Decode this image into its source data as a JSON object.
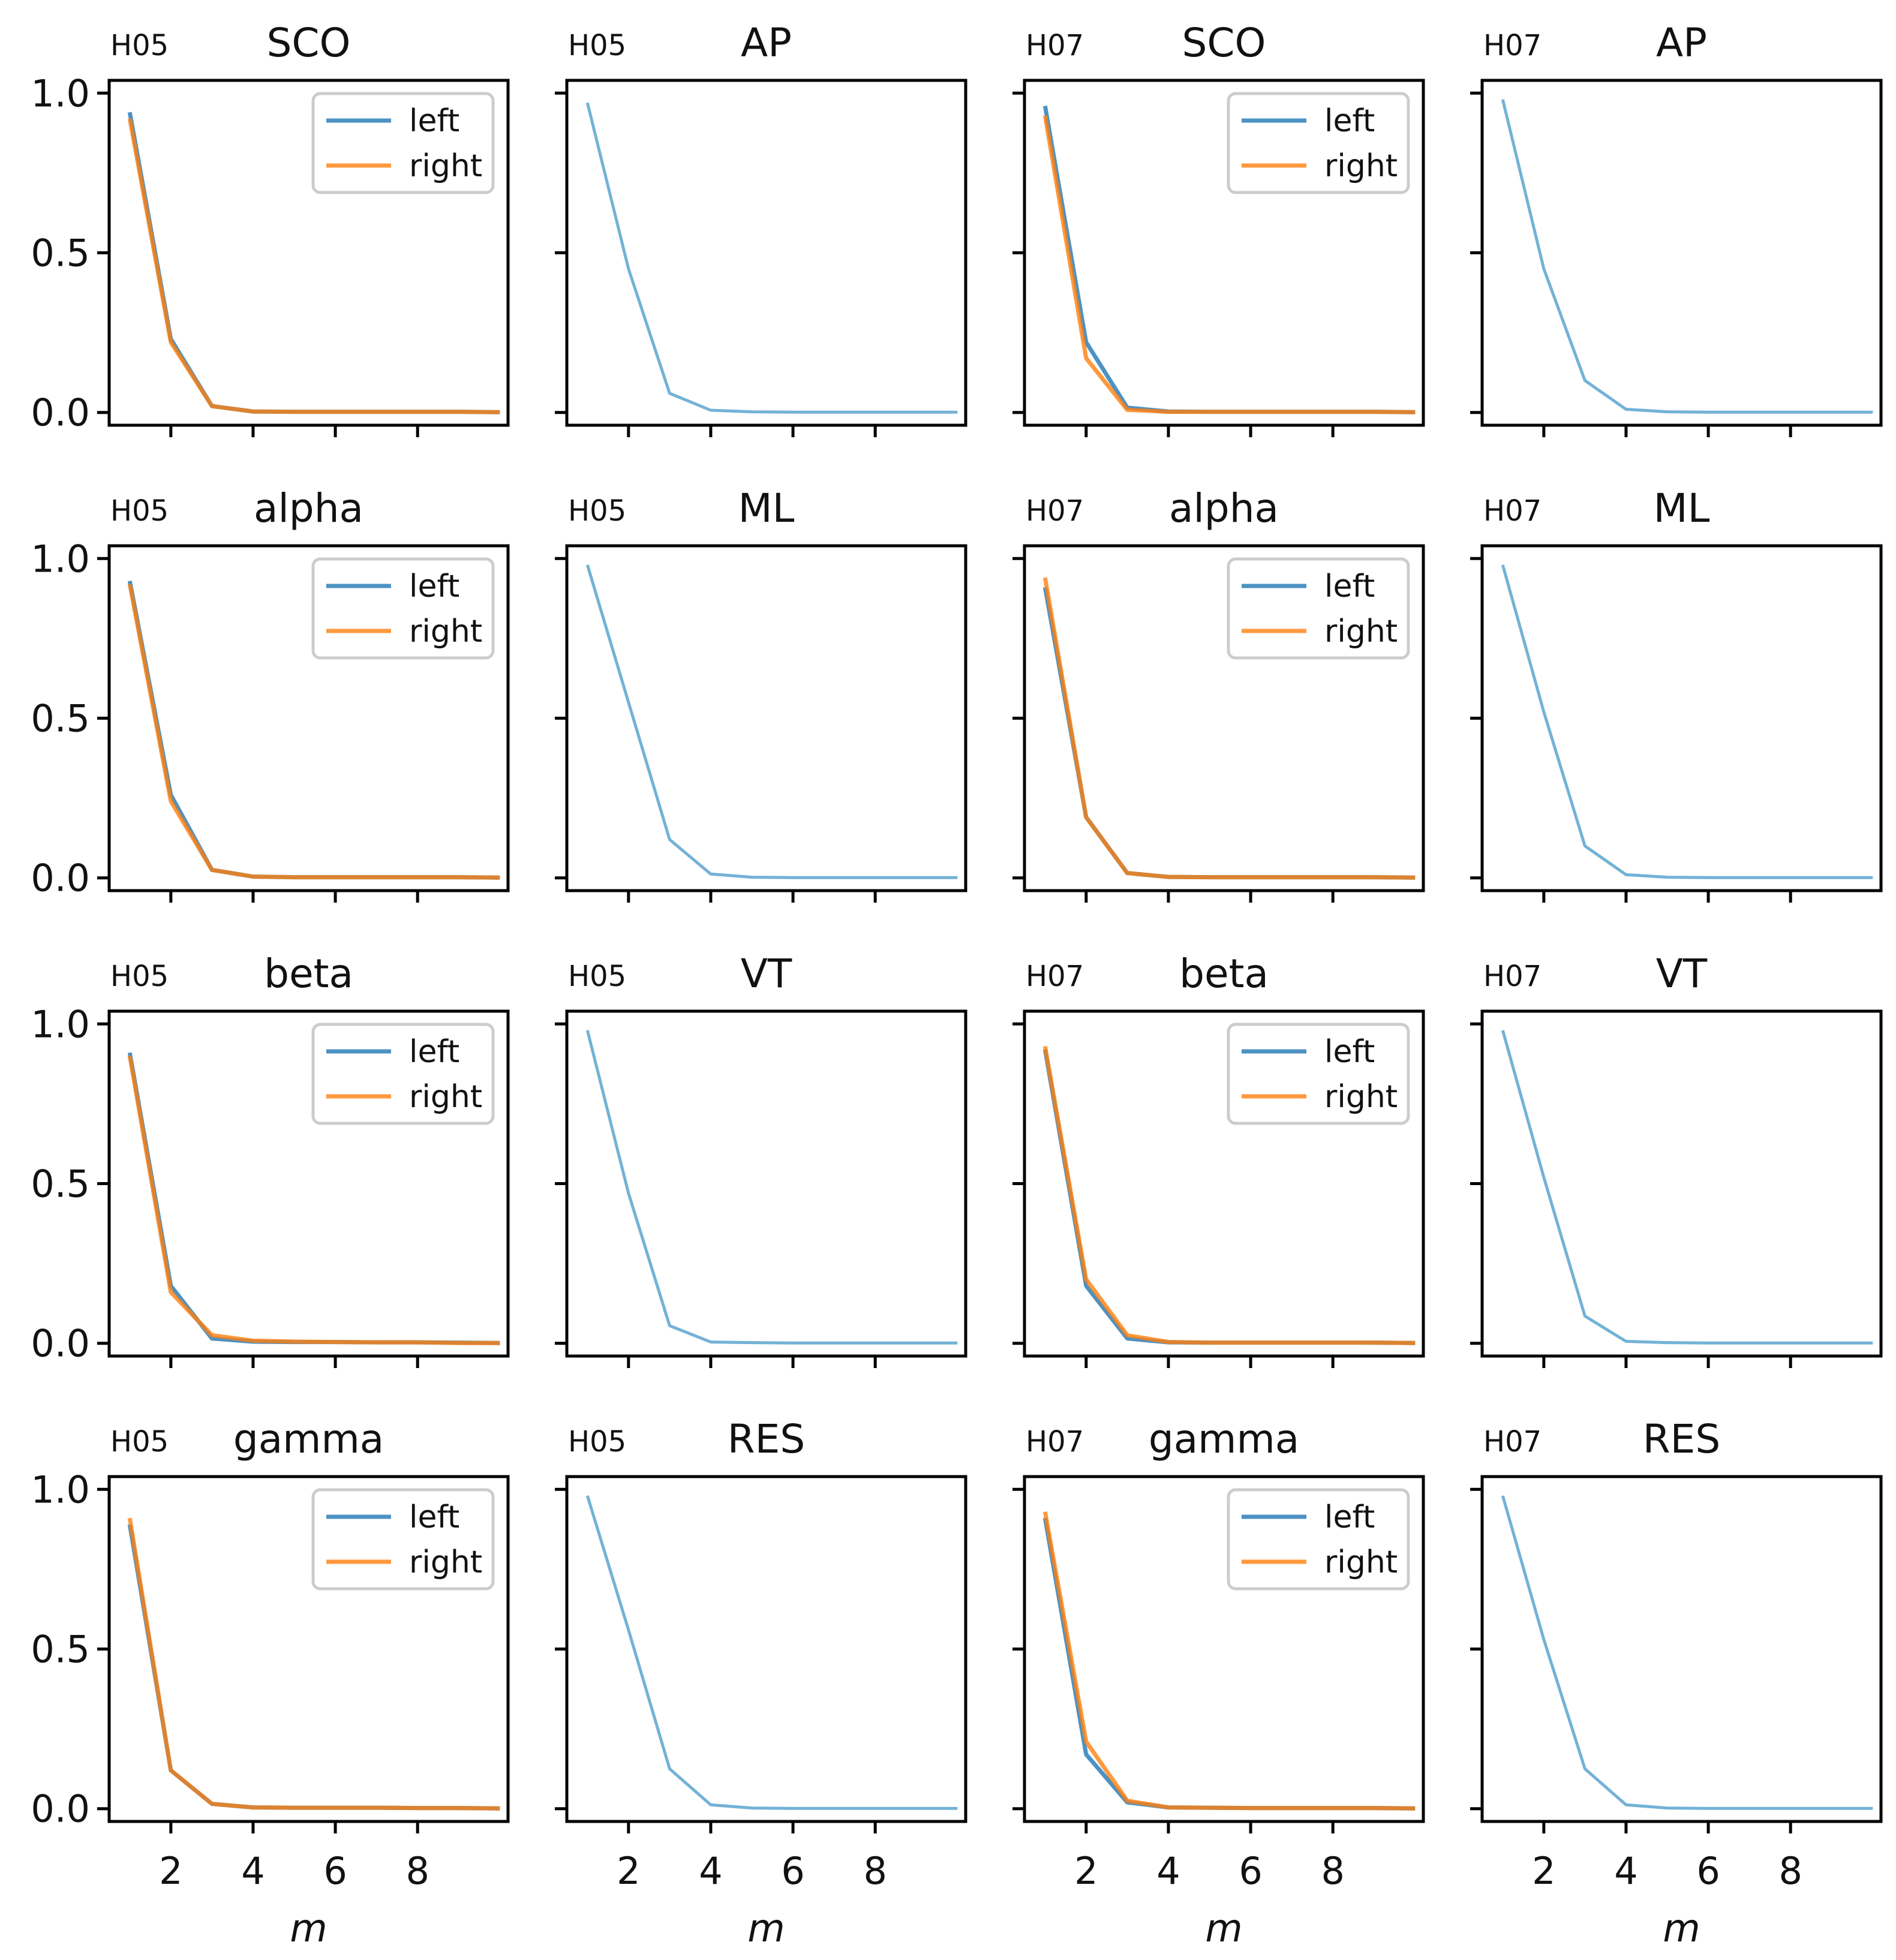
{
  "figure": {
    "colors": {
      "left": "#1f77b4",
      "right": "#ff7f0e",
      "single": "#5aa5cf"
    },
    "xlabel": "m",
    "x_ticks": [
      2,
      4,
      6,
      8
    ],
    "y_ticks": [
      "1.0",
      "0.5",
      "0.0"
    ]
  },
  "chart_data": [
    {
      "id": "r0c0",
      "type": "line",
      "prefix": "H05",
      "title": "SCO",
      "xlim": [
        0.5,
        10.2
      ],
      "ylim": [
        -0.04,
        1.04
      ],
      "legend": [
        "left",
        "right"
      ],
      "series": [
        {
          "name": "left",
          "x": [
            1,
            2,
            3,
            4,
            5,
            6,
            7,
            8,
            9,
            10
          ],
          "values": [
            0.94,
            0.23,
            0.02,
            0.003,
            0.002,
            0.002,
            0.002,
            0.002,
            0.002,
            0.001
          ]
        },
        {
          "name": "right",
          "x": [
            1,
            2,
            3,
            4,
            5,
            6,
            7,
            8,
            9,
            10
          ],
          "values": [
            0.92,
            0.22,
            0.02,
            0.003,
            0.002,
            0.002,
            0.002,
            0.002,
            0.002,
            0.001
          ]
        }
      ]
    },
    {
      "id": "r0c1",
      "type": "line",
      "prefix": "H05",
      "title": "AP",
      "xlim": [
        0.5,
        10.2
      ],
      "ylim": [
        -0.04,
        1.04
      ],
      "legend": [],
      "series": [
        {
          "name": "",
          "x": [
            1,
            2,
            3,
            4,
            5,
            6,
            7,
            8,
            9,
            10
          ],
          "values": [
            0.97,
            0.45,
            0.06,
            0.007,
            0.002,
            0.001,
            0.001,
            0.001,
            0.001,
            0.001
          ]
        }
      ]
    },
    {
      "id": "r0c2",
      "type": "line",
      "prefix": "H07",
      "title": "SCO",
      "xlim": [
        0.5,
        10.2
      ],
      "ylim": [
        -0.04,
        1.04
      ],
      "legend": [
        "left",
        "right"
      ],
      "series": [
        {
          "name": "left",
          "x": [
            1,
            2,
            3,
            4,
            5,
            6,
            7,
            8,
            9,
            10
          ],
          "values": [
            0.96,
            0.22,
            0.015,
            0.003,
            0.002,
            0.002,
            0.002,
            0.002,
            0.002,
            0.001
          ]
        },
        {
          "name": "right",
          "x": [
            1,
            2,
            3,
            4,
            5,
            6,
            7,
            8,
            9,
            10
          ],
          "values": [
            0.93,
            0.17,
            0.008,
            0.002,
            0.002,
            0.002,
            0.002,
            0.002,
            0.002,
            0.001
          ]
        }
      ]
    },
    {
      "id": "r0c3",
      "type": "line",
      "prefix": "H07",
      "title": "AP",
      "xlim": [
        0.5,
        10.2
      ],
      "ylim": [
        -0.04,
        1.04
      ],
      "legend": [],
      "series": [
        {
          "name": "",
          "x": [
            1,
            2,
            3,
            4,
            5,
            6,
            7,
            8,
            9,
            10
          ],
          "values": [
            0.98,
            0.45,
            0.1,
            0.01,
            0.002,
            0.001,
            0.001,
            0.001,
            0.001,
            0.001
          ]
        }
      ]
    },
    {
      "id": "r1c0",
      "type": "line",
      "prefix": "H05",
      "title": "alpha",
      "xlim": [
        0.5,
        10.2
      ],
      "ylim": [
        -0.04,
        1.04
      ],
      "legend": [
        "left",
        "right"
      ],
      "series": [
        {
          "name": "left",
          "x": [
            1,
            2,
            3,
            4,
            5,
            6,
            7,
            8,
            9,
            10
          ],
          "values": [
            0.93,
            0.26,
            0.025,
            0.004,
            0.002,
            0.002,
            0.002,
            0.002,
            0.002,
            0.001
          ]
        },
        {
          "name": "right",
          "x": [
            1,
            2,
            3,
            4,
            5,
            6,
            7,
            8,
            9,
            10
          ],
          "values": [
            0.92,
            0.24,
            0.025,
            0.004,
            0.002,
            0.002,
            0.002,
            0.002,
            0.002,
            0.001
          ]
        }
      ]
    },
    {
      "id": "r1c1",
      "type": "line",
      "prefix": "H05",
      "title": "ML",
      "xlim": [
        0.5,
        10.2
      ],
      "ylim": [
        -0.04,
        1.04
      ],
      "legend": [],
      "series": [
        {
          "name": "",
          "x": [
            1,
            2,
            3,
            4,
            5,
            6,
            7,
            8,
            9,
            10
          ],
          "values": [
            0.98,
            0.55,
            0.12,
            0.012,
            0.002,
            0.001,
            0.001,
            0.001,
            0.001,
            0.001
          ]
        }
      ]
    },
    {
      "id": "r1c2",
      "type": "line",
      "prefix": "H07",
      "title": "alpha",
      "xlim": [
        0.5,
        10.2
      ],
      "ylim": [
        -0.04,
        1.04
      ],
      "legend": [
        "left",
        "right"
      ],
      "series": [
        {
          "name": "left",
          "x": [
            1,
            2,
            3,
            4,
            5,
            6,
            7,
            8,
            9,
            10
          ],
          "values": [
            0.91,
            0.19,
            0.015,
            0.003,
            0.002,
            0.002,
            0.002,
            0.002,
            0.002,
            0.001
          ]
        },
        {
          "name": "right",
          "x": [
            1,
            2,
            3,
            4,
            5,
            6,
            7,
            8,
            9,
            10
          ],
          "values": [
            0.94,
            0.19,
            0.015,
            0.003,
            0.002,
            0.002,
            0.002,
            0.002,
            0.002,
            0.001
          ]
        }
      ]
    },
    {
      "id": "r1c3",
      "type": "line",
      "prefix": "H07",
      "title": "ML",
      "xlim": [
        0.5,
        10.2
      ],
      "ylim": [
        -0.04,
        1.04
      ],
      "legend": [],
      "series": [
        {
          "name": "",
          "x": [
            1,
            2,
            3,
            4,
            5,
            6,
            7,
            8,
            9,
            10
          ],
          "values": [
            0.98,
            0.52,
            0.1,
            0.01,
            0.002,
            0.001,
            0.001,
            0.001,
            0.001,
            0.001
          ]
        }
      ]
    },
    {
      "id": "r2c0",
      "type": "line",
      "prefix": "H05",
      "title": "beta",
      "xlim": [
        0.5,
        10.2
      ],
      "ylim": [
        -0.04,
        1.04
      ],
      "legend": [
        "left",
        "right"
      ],
      "series": [
        {
          "name": "left",
          "x": [
            1,
            2,
            3,
            4,
            5,
            6,
            7,
            8,
            9,
            10
          ],
          "values": [
            0.91,
            0.18,
            0.015,
            0.005,
            0.004,
            0.004,
            0.003,
            0.003,
            0.002,
            0.001
          ]
        },
        {
          "name": "right",
          "x": [
            1,
            2,
            3,
            4,
            5,
            6,
            7,
            8,
            9,
            10
          ],
          "values": [
            0.9,
            0.16,
            0.025,
            0.008,
            0.005,
            0.004,
            0.003,
            0.003,
            0.001,
            0.001
          ]
        }
      ]
    },
    {
      "id": "r2c1",
      "type": "line",
      "prefix": "H05",
      "title": "VT",
      "xlim": [
        0.5,
        10.2
      ],
      "ylim": [
        -0.04,
        1.04
      ],
      "legend": [],
      "series": [
        {
          "name": "",
          "x": [
            1,
            2,
            3,
            4,
            5,
            6,
            7,
            8,
            9,
            10
          ],
          "values": [
            0.98,
            0.47,
            0.055,
            0.004,
            0.002,
            0.001,
            0.001,
            0.001,
            0.001,
            0.001
          ]
        }
      ]
    },
    {
      "id": "r2c2",
      "type": "line",
      "prefix": "H07",
      "title": "beta",
      "xlim": [
        0.5,
        10.2
      ],
      "ylim": [
        -0.04,
        1.04
      ],
      "legend": [
        "left",
        "right"
      ],
      "series": [
        {
          "name": "left",
          "x": [
            1,
            2,
            3,
            4,
            5,
            6,
            7,
            8,
            9,
            10
          ],
          "values": [
            0.92,
            0.18,
            0.015,
            0.003,
            0.002,
            0.002,
            0.002,
            0.002,
            0.002,
            0.001
          ]
        },
        {
          "name": "right",
          "x": [
            1,
            2,
            3,
            4,
            5,
            6,
            7,
            8,
            9,
            10
          ],
          "values": [
            0.93,
            0.2,
            0.025,
            0.004,
            0.002,
            0.002,
            0.002,
            0.002,
            0.002,
            0.001
          ]
        }
      ]
    },
    {
      "id": "r2c3",
      "type": "line",
      "prefix": "H07",
      "title": "VT",
      "xlim": [
        0.5,
        10.2
      ],
      "ylim": [
        -0.04,
        1.04
      ],
      "legend": [],
      "series": [
        {
          "name": "",
          "x": [
            1,
            2,
            3,
            4,
            5,
            6,
            7,
            8,
            9,
            10
          ],
          "values": [
            0.98,
            0.52,
            0.085,
            0.006,
            0.002,
            0.001,
            0.001,
            0.001,
            0.001,
            0.001
          ]
        }
      ]
    },
    {
      "id": "r3c0",
      "type": "line",
      "prefix": "H05",
      "title": "gamma",
      "xlim": [
        0.5,
        10.2
      ],
      "ylim": [
        -0.04,
        1.04
      ],
      "legend": [
        "left",
        "right"
      ],
      "series": [
        {
          "name": "left",
          "x": [
            1,
            2,
            3,
            4,
            5,
            6,
            7,
            8,
            9,
            10
          ],
          "values": [
            0.89,
            0.12,
            0.015,
            0.004,
            0.003,
            0.003,
            0.003,
            0.002,
            0.002,
            0.001
          ]
        },
        {
          "name": "right",
          "x": [
            1,
            2,
            3,
            4,
            5,
            6,
            7,
            8,
            9,
            10
          ],
          "values": [
            0.91,
            0.12,
            0.015,
            0.004,
            0.003,
            0.003,
            0.003,
            0.002,
            0.002,
            0.001
          ]
        }
      ]
    },
    {
      "id": "r3c1",
      "type": "line",
      "prefix": "H05",
      "title": "RES",
      "xlim": [
        0.5,
        10.2
      ],
      "ylim": [
        -0.04,
        1.04
      ],
      "legend": [],
      "series": [
        {
          "name": "",
          "x": [
            1,
            2,
            3,
            4,
            5,
            6,
            7,
            8,
            9,
            10
          ],
          "values": [
            0.98,
            0.56,
            0.125,
            0.012,
            0.002,
            0.001,
            0.001,
            0.001,
            0.001,
            0.001
          ]
        }
      ]
    },
    {
      "id": "r3c2",
      "type": "line",
      "prefix": "H07",
      "title": "gamma",
      "xlim": [
        0.5,
        10.2
      ],
      "ylim": [
        -0.04,
        1.04
      ],
      "legend": [
        "left",
        "right"
      ],
      "series": [
        {
          "name": "left",
          "x": [
            1,
            2,
            3,
            4,
            5,
            6,
            7,
            8,
            9,
            10
          ],
          "values": [
            0.91,
            0.17,
            0.02,
            0.004,
            0.003,
            0.002,
            0.002,
            0.002,
            0.002,
            0.001
          ]
        },
        {
          "name": "right",
          "x": [
            1,
            2,
            3,
            4,
            5,
            6,
            7,
            8,
            9,
            10
          ],
          "values": [
            0.93,
            0.21,
            0.025,
            0.004,
            0.003,
            0.002,
            0.002,
            0.002,
            0.002,
            0.001
          ]
        }
      ]
    },
    {
      "id": "r3c3",
      "type": "line",
      "prefix": "H07",
      "title": "RES",
      "xlim": [
        0.5,
        10.2
      ],
      "ylim": [
        -0.04,
        1.04
      ],
      "legend": [],
      "series": [
        {
          "name": "",
          "x": [
            1,
            2,
            3,
            4,
            5,
            6,
            7,
            8,
            9,
            10
          ],
          "values": [
            0.98,
            0.53,
            0.125,
            0.012,
            0.002,
            0.001,
            0.001,
            0.001,
            0.001,
            0.001
          ]
        }
      ]
    }
  ]
}
